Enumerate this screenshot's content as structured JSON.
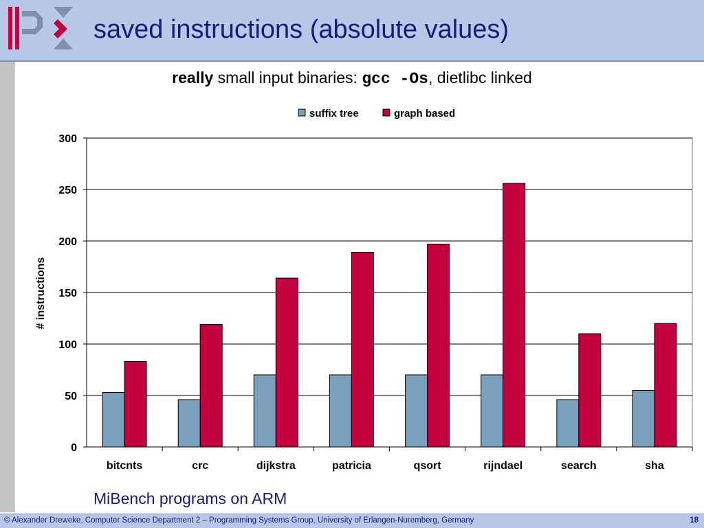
{
  "header": {
    "title": "saved instructions (absolute values)"
  },
  "subtitle": {
    "bold": "really",
    "text": " small input binaries: ",
    "code": "gcc -Os",
    "suffix": ", dietlibc linked"
  },
  "caption": "MiBench programs on ARM",
  "footer": {
    "text": "© Alexander Dreweke, Computer Science Department 2 – Programming Systems Group, University of Erlangen-Nuremberg, Germany",
    "page": "18"
  },
  "colors": {
    "header_bg": "#b8c8e8",
    "suffix_tree": "#7aa0bc",
    "graph_based": "#c4003f",
    "logo_red": "#c4003f",
    "logo_blue": "#7f8fb0"
  },
  "chart_data": {
    "type": "bar",
    "title": "",
    "xlabel": "",
    "ylabel": "# instructions",
    "ylim": [
      0,
      300
    ],
    "yticks": [
      0,
      50,
      100,
      150,
      200,
      250,
      300
    ],
    "categories": [
      "bitcnts",
      "crc",
      "dijkstra",
      "patricia",
      "qsort",
      "rijndael",
      "search",
      "sha"
    ],
    "series": [
      {
        "name": "suffix tree",
        "color": "#7aa0bc",
        "values": [
          53,
          46,
          70,
          70,
          70,
          70,
          46,
          55
        ]
      },
      {
        "name": "graph based",
        "color": "#c4003f",
        "values": [
          83,
          119,
          164,
          189,
          197,
          256,
          110,
          120
        ]
      }
    ],
    "grid": true,
    "legend": "top-center"
  }
}
